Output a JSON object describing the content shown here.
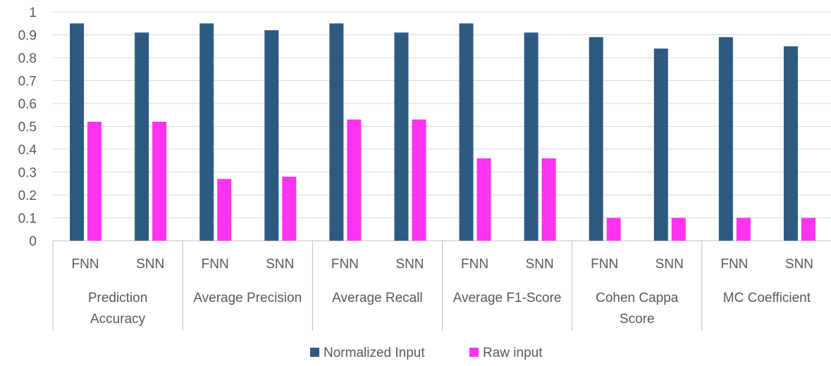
{
  "chart_data": {
    "type": "bar",
    "title": "",
    "xlabel": "",
    "ylabel": "",
    "ylim": [
      0,
      1
    ],
    "yticks": [
      "0",
      "0.1",
      "0.2",
      "0.3",
      "0.4",
      "0.5",
      "0.6",
      "0.7",
      "0.8",
      "0.9",
      "1"
    ],
    "groups": [
      {
        "label_lines": [
          "Prediction",
          "Accuracy"
        ],
        "subcategories": [
          "FNN",
          "SNN"
        ]
      },
      {
        "label_lines": [
          "Average Precision"
        ],
        "subcategories": [
          "FNN",
          "SNN"
        ]
      },
      {
        "label_lines": [
          "Average Recall"
        ],
        "subcategories": [
          "FNN",
          "SNN"
        ]
      },
      {
        "label_lines": [
          "Average F1-Score"
        ],
        "subcategories": [
          "FNN",
          "SNN"
        ]
      },
      {
        "label_lines": [
          "Cohen Cappa",
          "Score"
        ],
        "subcategories": [
          "FNN",
          "SNN"
        ]
      },
      {
        "label_lines": [
          "MC Coefficient"
        ],
        "subcategories": [
          "FNN",
          "SNN"
        ]
      }
    ],
    "series": [
      {
        "name": "Normalized Input",
        "color": "#2E5A82",
        "values": [
          0.95,
          0.91,
          0.95,
          0.92,
          0.95,
          0.91,
          0.95,
          0.91,
          0.89,
          0.84,
          0.89,
          0.85
        ]
      },
      {
        "name": "Raw input",
        "color": "#FF33F0",
        "values": [
          0.52,
          0.52,
          0.27,
          0.28,
          0.53,
          0.53,
          0.36,
          0.36,
          0.1,
          0.1,
          0.1,
          0.1
        ]
      }
    ],
    "grid": true,
    "legend": "bottom"
  }
}
